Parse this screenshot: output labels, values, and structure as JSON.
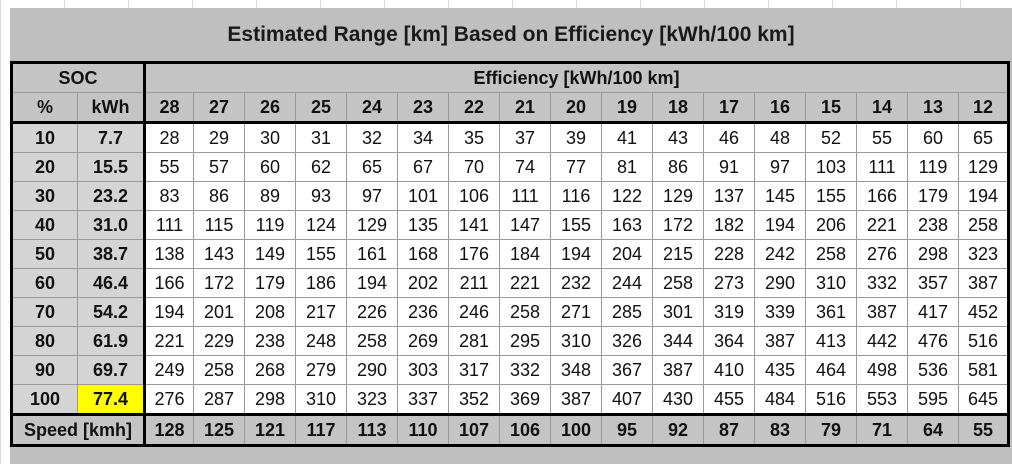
{
  "title": "Estimated Range [km] Based on Efficiency [kWh/100 km]",
  "soc_label": "SOC",
  "efficiency_label": "Efficiency [kWh/100 km]",
  "pct_label": "%",
  "kwh_label": "kWh",
  "efficiencies": [
    "28",
    "27",
    "26",
    "25",
    "24",
    "23",
    "22",
    "21",
    "20",
    "19",
    "18",
    "17",
    "16",
    "15",
    "14",
    "13",
    "12"
  ],
  "rows": [
    {
      "pct": "10",
      "kwh": "7.7",
      "values": [
        "28",
        "29",
        "30",
        "31",
        "32",
        "34",
        "35",
        "37",
        "39",
        "41",
        "43",
        "46",
        "48",
        "52",
        "55",
        "60",
        "65"
      ]
    },
    {
      "pct": "20",
      "kwh": "15.5",
      "values": [
        "55",
        "57",
        "60",
        "62",
        "65",
        "67",
        "70",
        "74",
        "77",
        "81",
        "86",
        "91",
        "97",
        "103",
        "111",
        "119",
        "129"
      ]
    },
    {
      "pct": "30",
      "kwh": "23.2",
      "values": [
        "83",
        "86",
        "89",
        "93",
        "97",
        "101",
        "106",
        "111",
        "116",
        "122",
        "129",
        "137",
        "145",
        "155",
        "166",
        "179",
        "194"
      ]
    },
    {
      "pct": "40",
      "kwh": "31.0",
      "values": [
        "111",
        "115",
        "119",
        "124",
        "129",
        "135",
        "141",
        "147",
        "155",
        "163",
        "172",
        "182",
        "194",
        "206",
        "221",
        "238",
        "258"
      ]
    },
    {
      "pct": "50",
      "kwh": "38.7",
      "values": [
        "138",
        "143",
        "149",
        "155",
        "161",
        "168",
        "176",
        "184",
        "194",
        "204",
        "215",
        "228",
        "242",
        "258",
        "276",
        "298",
        "323"
      ]
    },
    {
      "pct": "60",
      "kwh": "46.4",
      "values": [
        "166",
        "172",
        "179",
        "186",
        "194",
        "202",
        "211",
        "221",
        "232",
        "244",
        "258",
        "273",
        "290",
        "310",
        "332",
        "357",
        "387"
      ]
    },
    {
      "pct": "70",
      "kwh": "54.2",
      "values": [
        "194",
        "201",
        "208",
        "217",
        "226",
        "236",
        "246",
        "258",
        "271",
        "285",
        "301",
        "319",
        "339",
        "361",
        "387",
        "417",
        "452"
      ]
    },
    {
      "pct": "80",
      "kwh": "61.9",
      "values": [
        "221",
        "229",
        "238",
        "248",
        "258",
        "269",
        "281",
        "295",
        "310",
        "326",
        "344",
        "364",
        "387",
        "413",
        "442",
        "476",
        "516"
      ]
    },
    {
      "pct": "90",
      "kwh": "69.7",
      "values": [
        "249",
        "258",
        "268",
        "279",
        "290",
        "303",
        "317",
        "332",
        "348",
        "367",
        "387",
        "410",
        "435",
        "464",
        "498",
        "536",
        "581"
      ]
    },
    {
      "pct": "100",
      "kwh": "77.4",
      "values": [
        "276",
        "287",
        "298",
        "310",
        "323",
        "337",
        "352",
        "369",
        "387",
        "407",
        "430",
        "455",
        "484",
        "516",
        "553",
        "595",
        "645"
      ]
    }
  ],
  "speed_label": "Speed [kmh]",
  "speeds": [
    "128",
    "125",
    "121",
    "117",
    "113",
    "110",
    "107",
    "106",
    "100",
    "95",
    "92",
    "87",
    "83",
    "79",
    "71",
    "64",
    "55"
  ],
  "highlight_color": "#ffff00"
}
